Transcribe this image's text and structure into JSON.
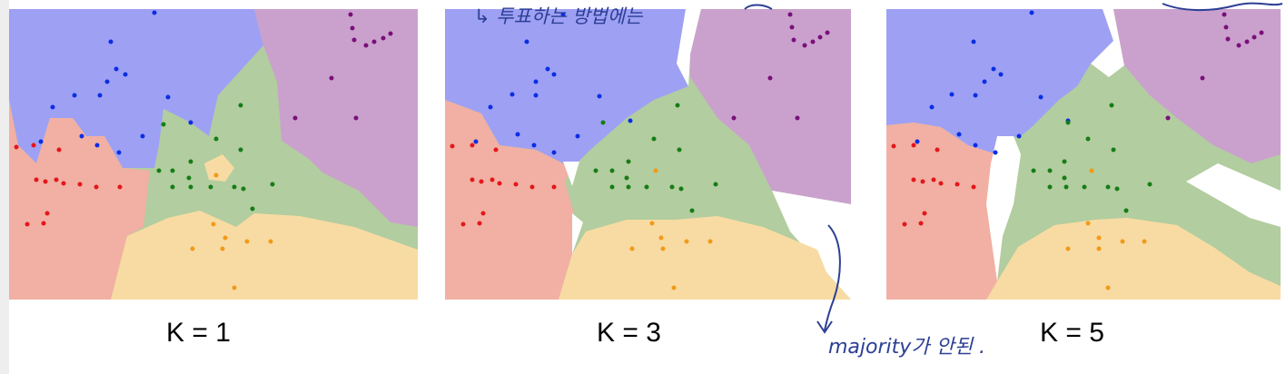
{
  "panels": [
    {
      "label": "K = 1"
    },
    {
      "label": "K = 3"
    },
    {
      "label": "K = 5"
    }
  ],
  "annotations": {
    "top": "↳ 투표하는 방법에는",
    "bottom": "majority가 안된 ."
  },
  "colors": {
    "blue_region": "#9ea0f4",
    "purple_region": "#caa1cd",
    "red_region": "#f1b0a3",
    "green_region": "#b2cd9f",
    "orange_region": "#f8dba3",
    "blue_point": "#0a2ee3",
    "purple_point": "#7a0f7a",
    "red_point": "#e4161c",
    "green_point": "#167d16",
    "orange_point": "#f19a18",
    "ink": "#2c3f94"
  }
}
